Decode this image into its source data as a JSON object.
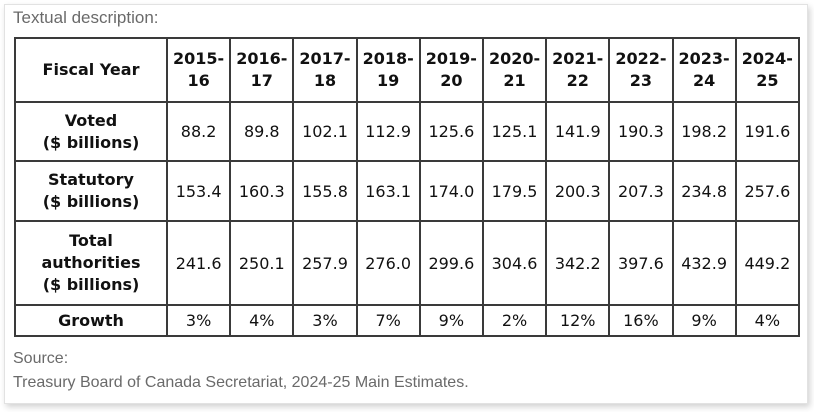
{
  "caption": "Textual description:",
  "table": {
    "header_label": "Fiscal Year",
    "years": [
      [
        "2015-",
        "16"
      ],
      [
        "2016-",
        "17"
      ],
      [
        "2017-",
        "18"
      ],
      [
        "2018-",
        "19"
      ],
      [
        "2019-",
        "20"
      ],
      [
        "2020-",
        "21"
      ],
      [
        "2021-",
        "22"
      ],
      [
        "2022-",
        "23"
      ],
      [
        "2023-",
        "24"
      ],
      [
        "2024-",
        "25"
      ]
    ],
    "rows": [
      {
        "label_lines": [
          "Voted",
          "($ billions)"
        ],
        "values": [
          "88.2",
          "89.8",
          "102.1",
          "112.9",
          "125.6",
          "125.1",
          "141.9",
          "190.3",
          "198.2",
          "191.6"
        ]
      },
      {
        "label_lines": [
          "Statutory",
          "($ billions)"
        ],
        "values": [
          "153.4",
          "160.3",
          "155.8",
          "163.1",
          "174.0",
          "179.5",
          "200.3",
          "207.3",
          "234.8",
          "257.6"
        ]
      },
      {
        "label_lines": [
          "Total",
          "authorities",
          "($ billions)"
        ],
        "values": [
          "241.6",
          "250.1",
          "257.9",
          "276.0",
          "299.6",
          "304.6",
          "342.2",
          "397.6",
          "432.9",
          "449.2"
        ]
      },
      {
        "label_lines": [
          "Growth"
        ],
        "values": [
          "3%",
          "4%",
          "3%",
          "7%",
          "9%",
          "2%",
          "12%",
          "16%",
          "9%",
          "4%"
        ]
      }
    ]
  },
  "source": {
    "label": "Source:",
    "text": "Treasury Board of Canada Secretariat, 2024-25 Main Estimates."
  }
}
